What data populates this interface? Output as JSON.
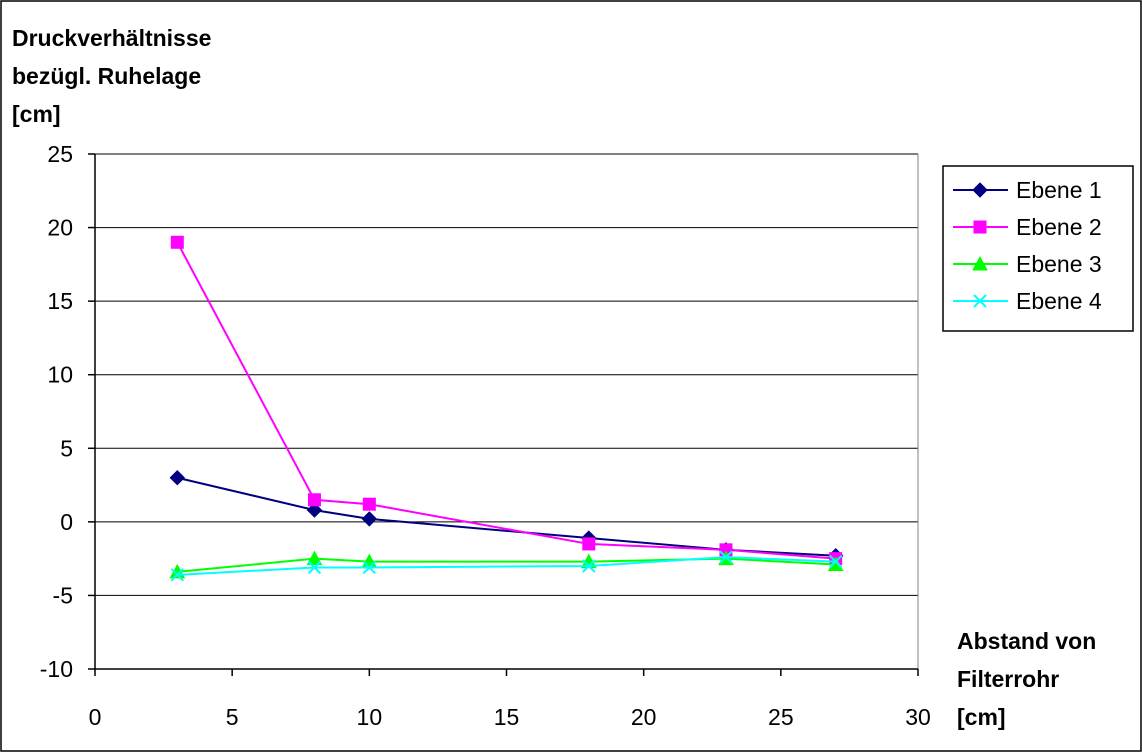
{
  "chart_data": {
    "type": "line",
    "title": "",
    "ylabel": "Druckverhältnisse bezügl. Ruhelage [cm]",
    "ylabel_lines": [
      "Druckverhältnisse",
      "bezügl. Ruhelage",
      "[cm]"
    ],
    "xlabel": "Abstand von Filterrohr [cm]",
    "xlabel_lines": [
      "Abstand von",
      "Filterrohr",
      "[cm]"
    ],
    "xlim": [
      0,
      30
    ],
    "ylim": [
      -10,
      25
    ],
    "x_ticks": [
      0,
      5,
      10,
      15,
      20,
      25,
      30
    ],
    "y_ticks": [
      -10,
      -5,
      0,
      5,
      10,
      15,
      20,
      25
    ],
    "x_tick_labels": [
      "0",
      "5",
      "10",
      "15",
      "20",
      "25",
      "30"
    ],
    "y_tick_labels": [
      "-10",
      "-5",
      "0",
      "5",
      "10",
      "15",
      "20",
      "25"
    ],
    "grid": {
      "horizontal": true,
      "vertical": false
    },
    "legend_position": "right",
    "x": [
      3,
      8,
      10,
      18,
      23,
      27
    ],
    "series": [
      {
        "name": "Ebene 1",
        "marker": "diamond",
        "color": "#000080",
        "values": [
          3.0,
          0.8,
          0.2,
          -1.1,
          -1.9,
          -2.3
        ]
      },
      {
        "name": "Ebene 2",
        "marker": "square",
        "color": "#ff00ff",
        "values": [
          19.0,
          1.5,
          1.2,
          -1.5,
          -1.9,
          -2.5
        ]
      },
      {
        "name": "Ebene 3",
        "marker": "triangle",
        "color": "#00ff00",
        "values": [
          -3.4,
          -2.5,
          -2.7,
          -2.7,
          -2.5,
          -2.9
        ]
      },
      {
        "name": "Ebene 4",
        "marker": "x",
        "color": "#00ffff",
        "values": [
          -3.6,
          -3.1,
          -3.1,
          -3.0,
          -2.4,
          -2.7
        ]
      }
    ]
  }
}
